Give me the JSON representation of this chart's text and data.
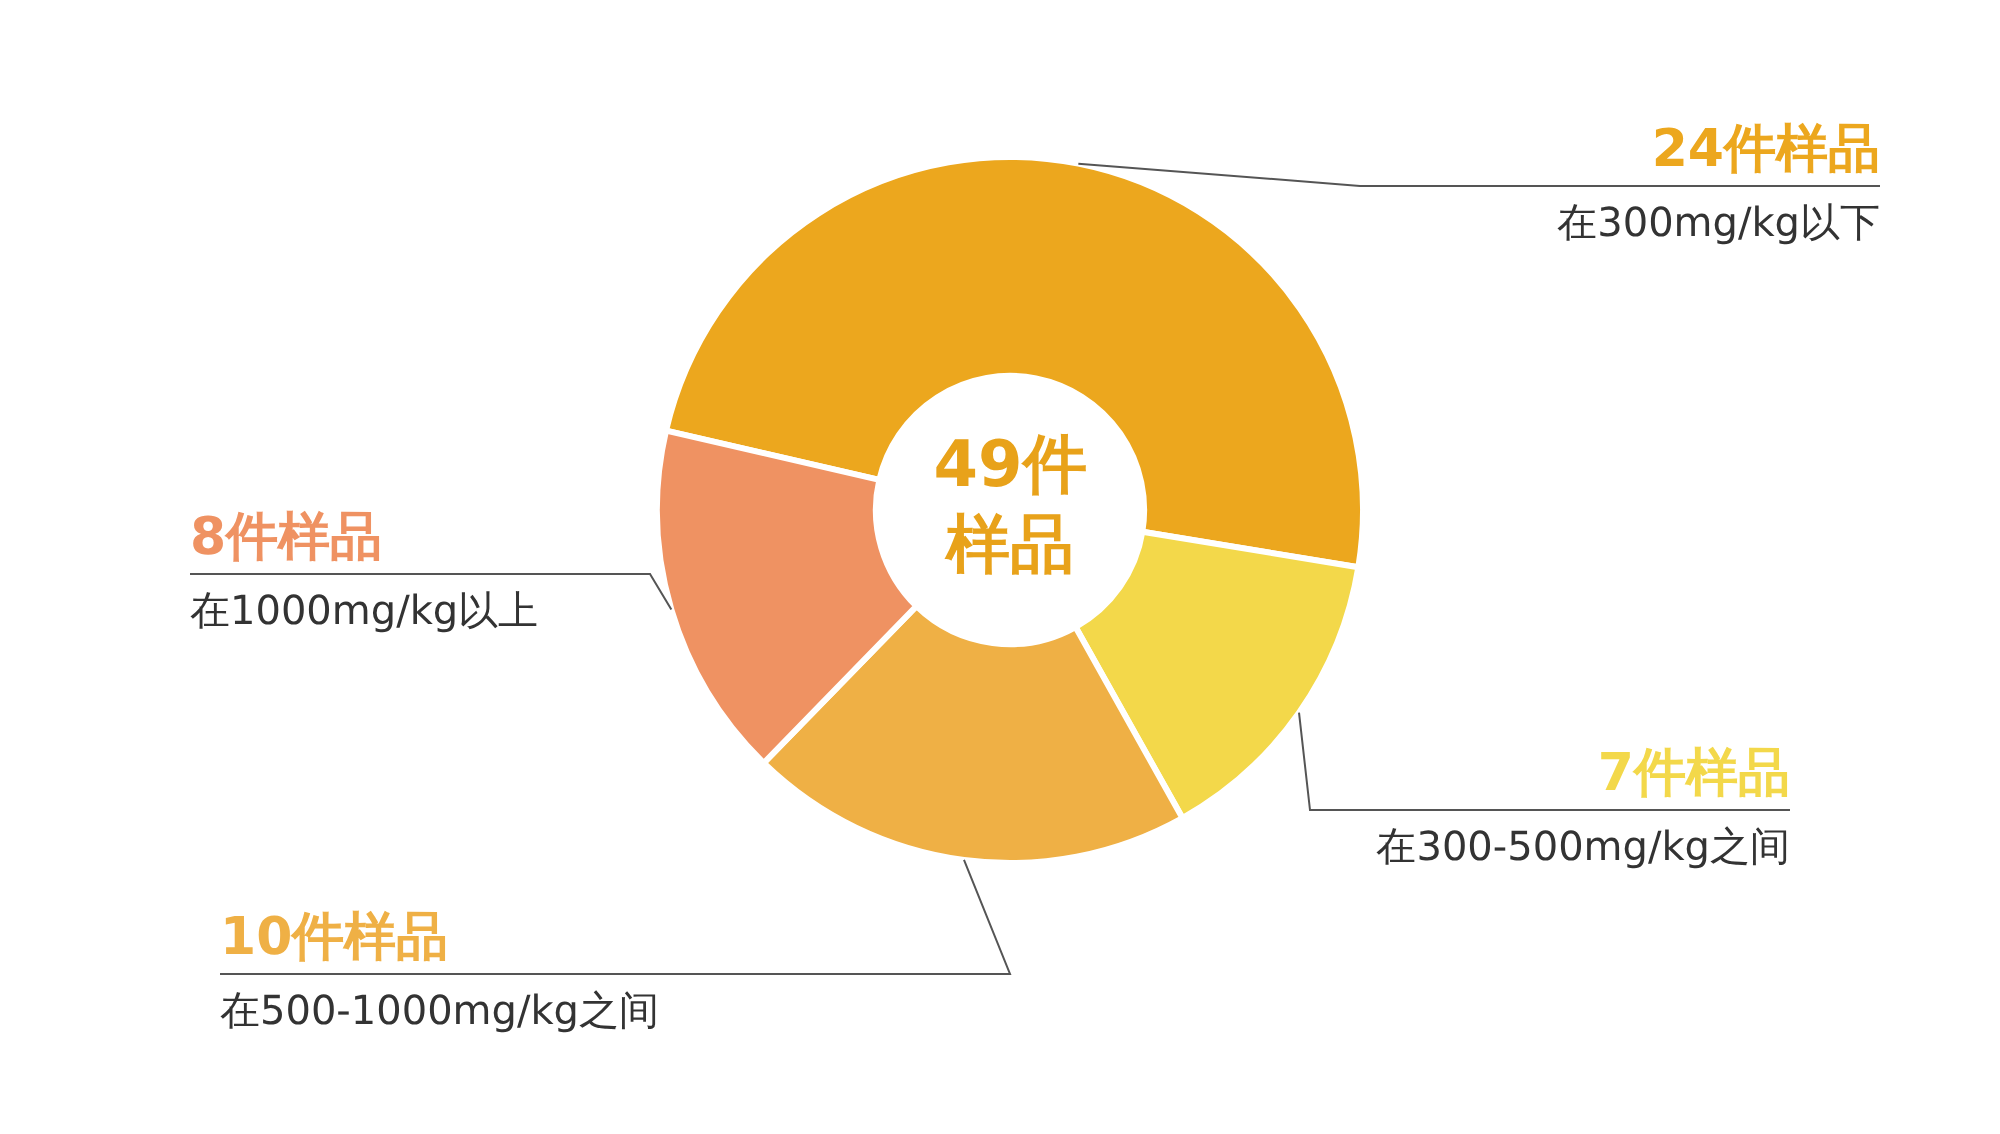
{
  "chart_data": {
    "type": "donut",
    "categories": [
      "在300mg/kg以下",
      "在300-500mg/kg之间",
      "在500-1000mg/kg之间",
      "在1000mg/kg以上"
    ],
    "values": [
      24,
      7,
      10,
      8
    ],
    "colors": [
      "#eca71e",
      "#f3d84a",
      "#efb045",
      "#ef9262"
    ],
    "value_labels": [
      "24件样品",
      "7件样品",
      "10件样品",
      "8件样品"
    ],
    "annotations": [
      "49件",
      "样品"
    ],
    "legend": false
  }
}
